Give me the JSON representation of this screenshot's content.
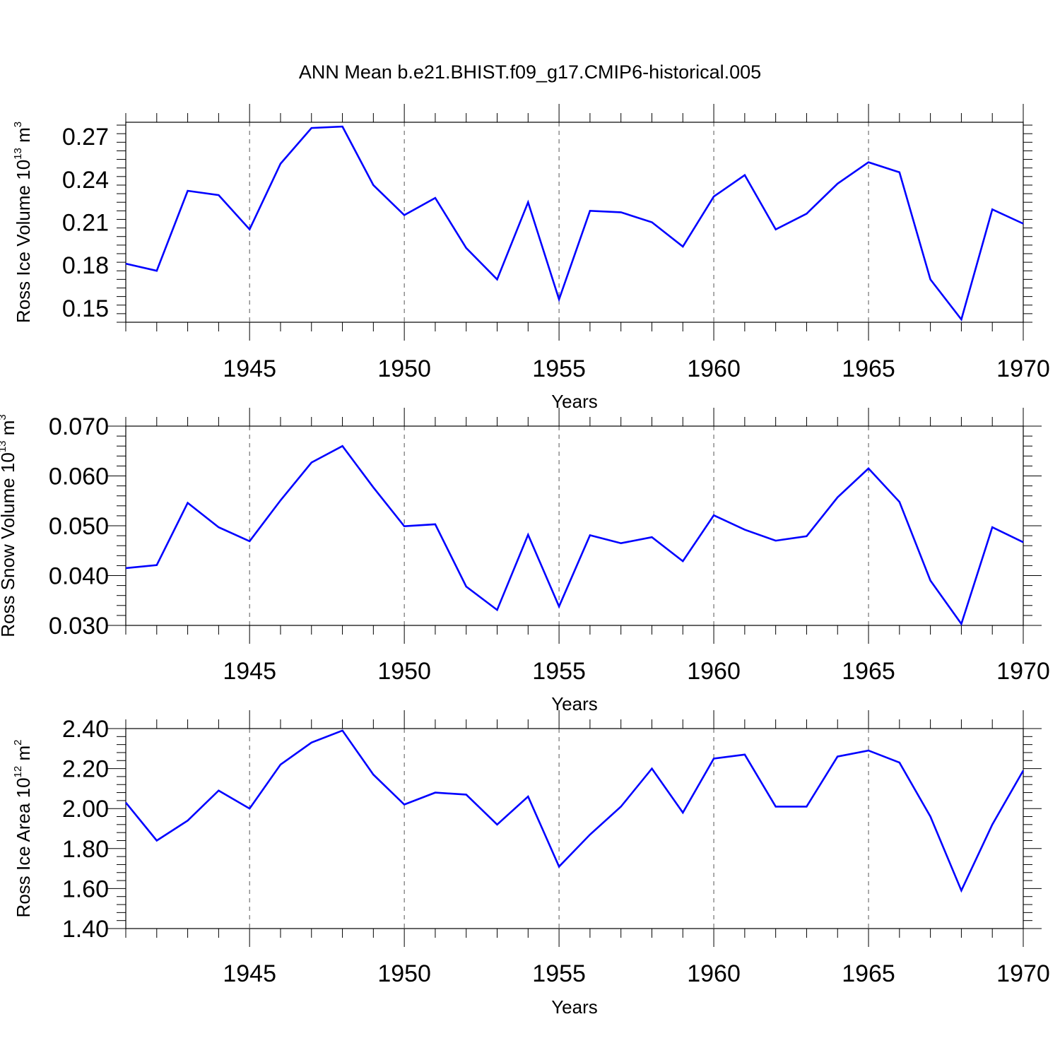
{
  "figure": {
    "title": "ANN Mean b.e21.BHIST.f09_g17.CMIP6-historical.005",
    "line_color": "#0000ff"
  },
  "chart_data": [
    {
      "type": "line",
      "title": "",
      "xlabel": "Years",
      "ylabel": {
        "main": "Ross Ice Volume 10",
        "exponent": "13",
        "unit": " m",
        "unit_exponent": "3"
      },
      "xlim": [
        1941,
        1970
      ],
      "ylim": [
        0.14,
        0.28
      ],
      "xticks": [
        1945,
        1950,
        1955,
        1960,
        1965,
        1970
      ],
      "xtick_labels": [
        "1945",
        "1950",
        "1955",
        "1960",
        "1965",
        "1970"
      ],
      "yticks": [
        0.15,
        0.18,
        0.21,
        0.24,
        0.27
      ],
      "ytick_labels": [
        "0.15",
        "0.18",
        "0.21",
        "0.24",
        "0.27"
      ],
      "grid": "vertical dashed at major x ticks",
      "series": [
        {
          "x": [
            1941,
            1942,
            1943,
            1944,
            1945,
            1946,
            1947,
            1948,
            1949,
            1950,
            1951,
            1952,
            1953,
            1954,
            1955,
            1956,
            1957,
            1958,
            1959,
            1960,
            1961,
            1962,
            1963,
            1964,
            1965,
            1966,
            1967,
            1968,
            1969,
            1970
          ],
          "values": [
            0.181,
            0.176,
            0.232,
            0.229,
            0.205,
            0.251,
            0.276,
            0.277,
            0.236,
            0.215,
            0.227,
            0.192,
            0.17,
            0.224,
            0.156,
            0.218,
            0.217,
            0.21,
            0.193,
            0.228,
            0.243,
            0.205,
            0.216,
            0.237,
            0.252,
            0.245,
            0.17,
            0.142,
            0.219,
            0.209
          ]
        }
      ]
    },
    {
      "type": "line",
      "title": "",
      "xlabel": "Years",
      "ylabel": {
        "main": "Ross Snow Volume 10",
        "exponent": "13",
        "unit": " m",
        "unit_exponent": "3"
      },
      "xlim": [
        1941,
        1970
      ],
      "ylim": [
        0.03,
        0.07
      ],
      "xticks": [
        1945,
        1950,
        1955,
        1960,
        1965,
        1970
      ],
      "xtick_labels": [
        "1945",
        "1950",
        "1955",
        "1960",
        "1965",
        "1970"
      ],
      "yticks": [
        0.03,
        0.04,
        0.05,
        0.06,
        0.07
      ],
      "ytick_labels": [
        "0.030",
        "0.040",
        "0.050",
        "0.060",
        "0.070"
      ],
      "grid": "vertical dashed at major x ticks",
      "series": [
        {
          "x": [
            1941,
            1942,
            1943,
            1944,
            1945,
            1946,
            1947,
            1948,
            1949,
            1950,
            1951,
            1952,
            1953,
            1954,
            1955,
            1956,
            1957,
            1958,
            1959,
            1960,
            1961,
            1962,
            1963,
            1964,
            1965,
            1966,
            1967,
            1968,
            1969,
            1970
          ],
          "values": [
            0.0415,
            0.0421,
            0.0546,
            0.0497,
            0.0469,
            0.0551,
            0.0627,
            0.066,
            0.0577,
            0.0499,
            0.0503,
            0.0378,
            0.0331,
            0.0482,
            0.0338,
            0.0481,
            0.0465,
            0.0477,
            0.0429,
            0.0521,
            0.0492,
            0.047,
            0.0479,
            0.0557,
            0.0615,
            0.0548,
            0.039,
            0.0303,
            0.0497,
            0.0467
          ]
        }
      ]
    },
    {
      "type": "line",
      "title": "",
      "xlabel": "Years",
      "ylabel": {
        "main": "Ross Ice Area 10",
        "exponent": "12",
        "unit": " m",
        "unit_exponent": "2"
      },
      "xlim": [
        1941,
        1970
      ],
      "ylim": [
        1.4,
        2.4
      ],
      "xticks": [
        1945,
        1950,
        1955,
        1960,
        1965,
        1970
      ],
      "xtick_labels": [
        "1945",
        "1950",
        "1955",
        "1960",
        "1965",
        "1970"
      ],
      "yticks": [
        1.4,
        1.6,
        1.8,
        2.0,
        2.2,
        2.4
      ],
      "ytick_labels": [
        "1.40",
        "1.60",
        "1.80",
        "2.00",
        "2.20",
        "2.40"
      ],
      "grid": "vertical dashed at major x ticks",
      "series": [
        {
          "x": [
            1941,
            1942,
            1943,
            1944,
            1945,
            1946,
            1947,
            1948,
            1949,
            1950,
            1951,
            1952,
            1953,
            1954,
            1955,
            1956,
            1957,
            1958,
            1959,
            1960,
            1961,
            1962,
            1963,
            1964,
            1965,
            1966,
            1967,
            1968,
            1969,
            1970
          ],
          "values": [
            2.03,
            1.84,
            1.94,
            2.09,
            2.0,
            2.22,
            2.33,
            2.39,
            2.17,
            2.02,
            2.08,
            2.07,
            1.92,
            2.06,
            1.71,
            1.87,
            2.01,
            2.2,
            1.98,
            2.25,
            2.27,
            2.01,
            2.01,
            2.26,
            2.29,
            2.23,
            1.96,
            1.59,
            1.92,
            2.19
          ]
        }
      ]
    }
  ]
}
